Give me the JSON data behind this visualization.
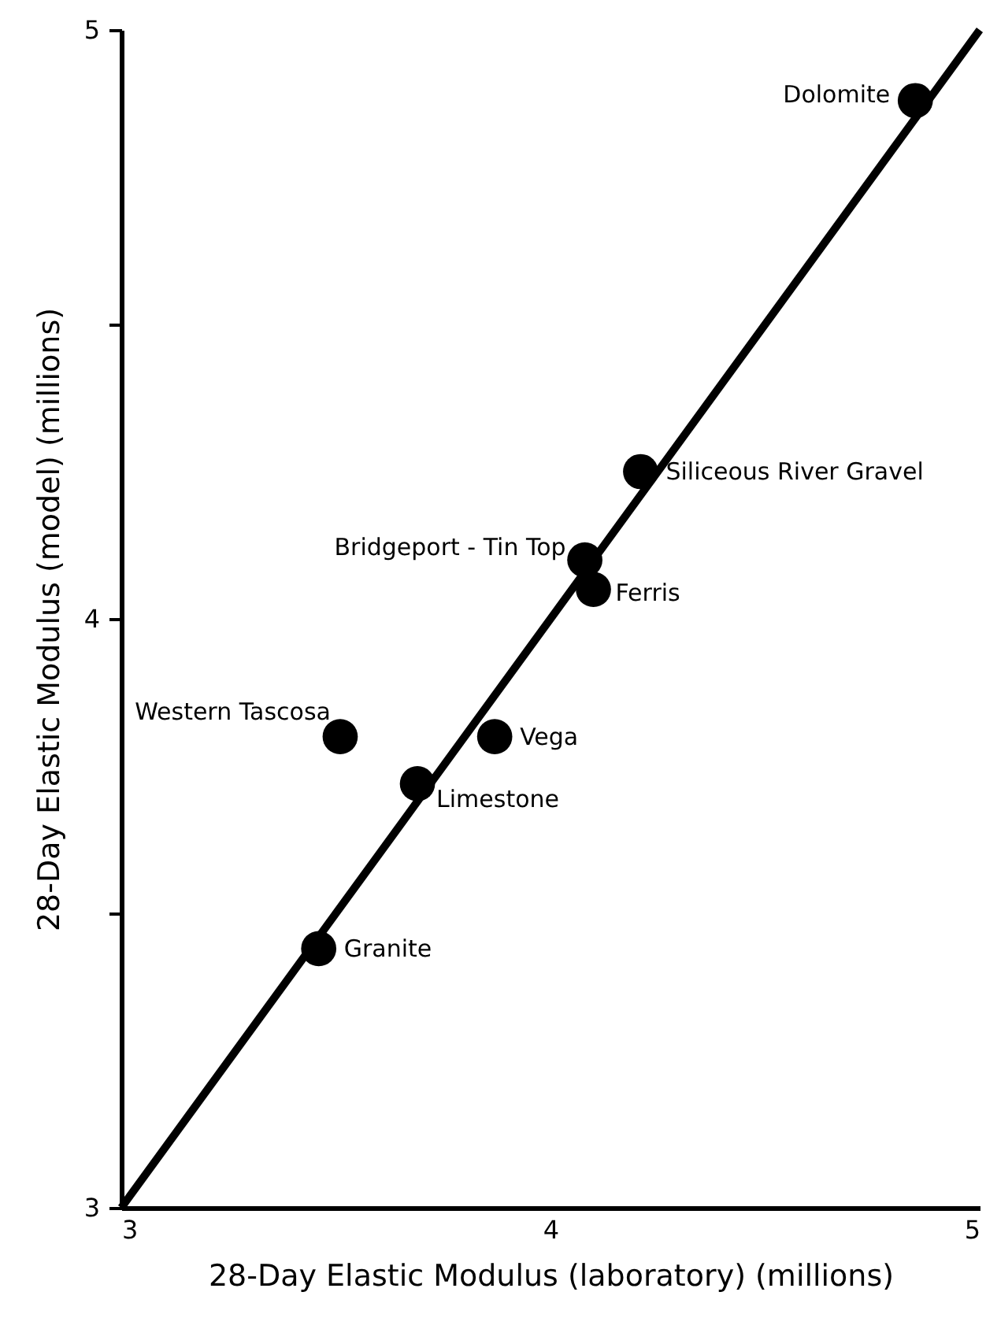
{
  "chart_data": {
    "type": "scatter",
    "xlabel": "28-Day Elastic Modulus (laboratory) (millions)",
    "ylabel": "28-Day Elastic Modulus (model) (millions)",
    "xlim": [
      3,
      5
    ],
    "ylim": [
      3,
      5
    ],
    "xticks": [
      3,
      4,
      5
    ],
    "yticks": [
      3,
      {
        "value": 3.5,
        "label": null
      },
      4,
      {
        "value": 4.5,
        "label": null
      },
      5
    ],
    "grid": false,
    "marker": "circle",
    "series": [
      {
        "type": "line",
        "marker": "none",
        "color": "#000000",
        "x": [
          3,
          5
        ],
        "values": [
          3,
          5
        ]
      },
      {
        "color": "#000000",
        "x": [
          4.85,
          4.21,
          4.08,
          4.1,
          3.51,
          3.87,
          3.69,
          3.46
        ],
        "values": [
          4.88,
          4.25,
          4.1,
          4.05,
          3.8,
          3.8,
          3.72,
          3.44
        ]
      }
    ],
    "annotations": [
      {
        "text": "Dolomite",
        "x": 4.85,
        "y": 4.88
      },
      {
        "text": "Siliceous River Gravel",
        "x": 4.21,
        "y": 4.25
      },
      {
        "text": "Bridgeport - Tin Top",
        "x": 4.08,
        "y": 4.1
      },
      {
        "text": "Ferris",
        "x": 4.1,
        "y": 4.05
      },
      {
        "text": "Western Tascosa",
        "x": 3.51,
        "y": 3.8
      },
      {
        "text": "Vega",
        "x": 3.87,
        "y": 3.8
      },
      {
        "text": "Limestone",
        "x": 3.69,
        "y": 3.72
      },
      {
        "text": "Granite",
        "x": 3.46,
        "y": 3.44
      }
    ]
  }
}
